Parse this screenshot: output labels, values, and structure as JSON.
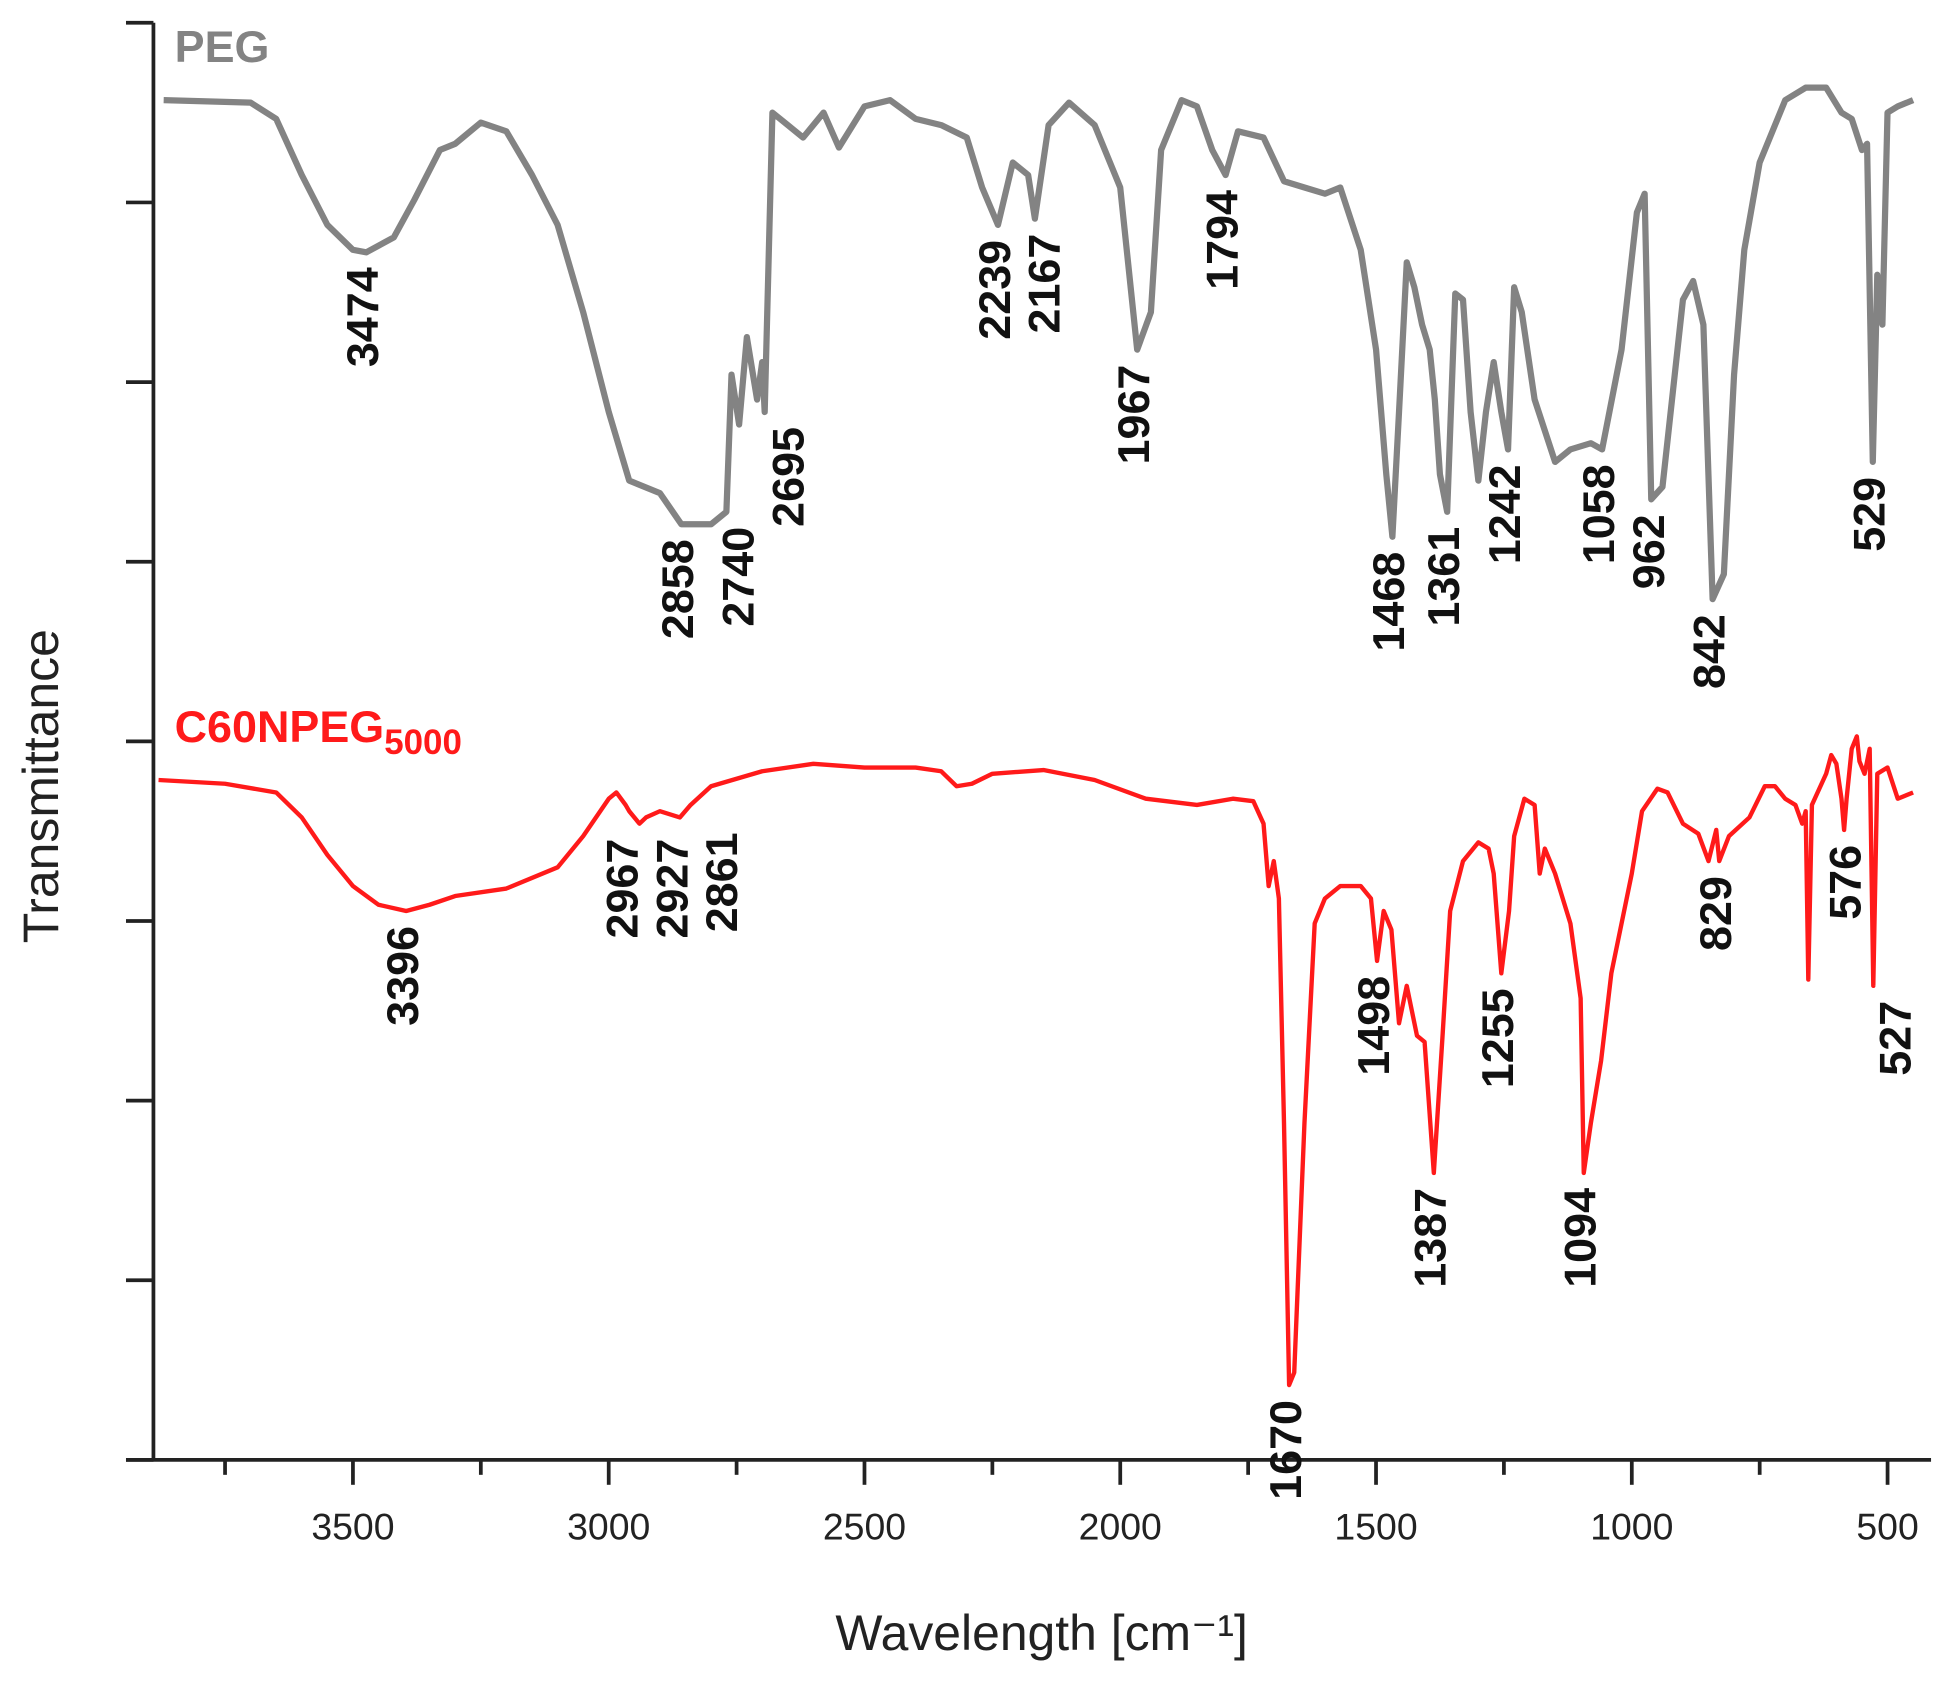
{
  "chart_data": {
    "type": "line",
    "xlabel": "Wavelength [cm⁻¹]",
    "ylabel": "Transmittance",
    "xlim": [
      3890,
      415
    ],
    "xticks": [
      3500,
      3000,
      2500,
      2000,
      1500,
      1000,
      500
    ],
    "xminorticks": [
      3750,
      3250,
      2750,
      2250,
      1750,
      1250,
      750
    ],
    "ylim": [
      0,
      1152
    ],
    "yticks": [
      0,
      144,
      288,
      432,
      576,
      720,
      864,
      1008,
      1152
    ],
    "ytick_labels": false,
    "series": [
      {
        "name": "PEG",
        "color": "#838383",
        "x": [
          3870,
          3700,
          3650,
          3600,
          3550,
          3500,
          3474,
          3420,
          3380,
          3330,
          3300,
          3250,
          3200,
          3150,
          3100,
          3050,
          3000,
          2960,
          2900,
          2858,
          2800,
          2770,
          2760,
          2745,
          2730,
          2710,
          2700,
          2695,
          2680,
          2650,
          2620,
          2580,
          2550,
          2500,
          2450,
          2400,
          2350,
          2300,
          2270,
          2239,
          2210,
          2180,
          2167,
          2140,
          2100,
          2050,
          2000,
          1967,
          1940,
          1920,
          1880,
          1850,
          1820,
          1794,
          1770,
          1720,
          1680,
          1640,
          1600,
          1570,
          1530,
          1500,
          1480,
          1468,
          1455,
          1440,
          1425,
          1410,
          1395,
          1385,
          1375,
          1361,
          1345,
          1330,
          1315,
          1300,
          1285,
          1270,
          1255,
          1242,
          1230,
          1215,
          1190,
          1150,
          1120,
          1080,
          1058,
          1020,
          990,
          975,
          962,
          940,
          900,
          880,
          860,
          842,
          820,
          800,
          780,
          750,
          700,
          660,
          620,
          590,
          570,
          550,
          540,
          529,
          520,
          510,
          500,
          480,
          450
        ],
        "values": [
          1090,
          1088,
          1075,
          1030,
          990,
          970,
          968,
          980,
          1010,
          1050,
          1055,
          1072,
          1065,
          1030,
          990,
          920,
          840,
          785,
          775,
          750,
          750,
          760,
          870,
          830,
          900,
          850,
          880,
          840,
          1080,
          1070,
          1060,
          1080,
          1052,
          1085,
          1090,
          1075,
          1070,
          1060,
          1020,
          990,
          1040,
          1030,
          995,
          1070,
          1088,
          1070,
          1020,
          890,
          920,
          1050,
          1090,
          1085,
          1050,
          1030,
          1065,
          1060,
          1025,
          1020,
          1015,
          1020,
          970,
          890,
          790,
          740,
          840,
          960,
          940,
          910,
          890,
          850,
          790,
          760,
          935,
          930,
          840,
          785,
          840,
          880,
          840,
          810,
          940,
          920,
          850,
          800,
          810,
          815,
          810,
          890,
          1000,
          1015,
          770,
          780,
          930,
          945,
          910,
          690,
          710,
          870,
          970,
          1040,
          1090,
          1100,
          1100,
          1080,
          1075,
          1050,
          1055,
          800,
          950,
          910,
          1080,
          1085,
          1090
        ],
        "peaks": [
          3474,
          2858,
          2740,
          2695,
          2239,
          2167,
          1967,
          1794,
          1468,
          1361,
          1242,
          1058,
          962,
          842,
          529
        ]
      },
      {
        "name": "C60NPEG",
        "name_subscript": "5000",
        "color": "#ff1a1a",
        "x": [
          3880,
          3750,
          3650,
          3600,
          3550,
          3500,
          3450,
          3396,
          3350,
          3300,
          3200,
          3100,
          3050,
          3000,
          2985,
          2967,
          2960,
          2940,
          2927,
          2900,
          2861,
          2840,
          2800,
          2700,
          2600,
          2500,
          2400,
          2350,
          2320,
          2290,
          2250,
          2150,
          2050,
          1950,
          1850,
          1780,
          1740,
          1720,
          1710,
          1700,
          1690,
          1680,
          1670,
          1660,
          1640,
          1620,
          1600,
          1570,
          1530,
          1510,
          1498,
          1485,
          1470,
          1455,
          1440,
          1430,
          1420,
          1405,
          1387,
          1370,
          1355,
          1330,
          1300,
          1280,
          1270,
          1255,
          1240,
          1230,
          1210,
          1190,
          1180,
          1170,
          1150,
          1120,
          1100,
          1094,
          1080,
          1060,
          1040,
          1000,
          980,
          950,
          930,
          900,
          870,
          850,
          835,
          829,
          810,
          770,
          740,
          720,
          700,
          680,
          667,
          660,
          655,
          648,
          620,
          610,
          600,
          590,
          585,
          580,
          570,
          560,
          555,
          545,
          535,
          528,
          520,
          500,
          480,
          450
        ],
        "values": [
          545,
          542,
          535,
          515,
          485,
          460,
          445,
          440,
          445,
          452,
          458,
          475,
          500,
          530,
          535,
          525,
          520,
          510,
          515,
          520,
          515,
          525,
          540,
          552,
          558,
          555,
          555,
          552,
          540,
          542,
          550,
          553,
          545,
          530,
          525,
          530,
          528,
          510,
          460,
          480,
          450,
          270,
          60,
          70,
          270,
          430,
          450,
          460,
          460,
          450,
          400,
          440,
          425,
          350,
          380,
          360,
          340,
          335,
          230,
          340,
          440,
          480,
          495,
          490,
          470,
          390,
          440,
          500,
          530,
          525,
          470,
          490,
          470,
          430,
          370,
          230,
          270,
          320,
          390,
          470,
          520,
          538,
          535,
          510,
          502,
          480,
          505,
          480,
          500,
          515,
          540,
          540,
          530,
          525,
          510,
          520,
          385,
          525,
          550,
          565,
          558,
          530,
          505,
          530,
          570,
          580,
          560,
          550,
          570,
          380,
          550,
          555,
          530,
          535
        ],
        "peaks": [
          3396,
          2967,
          2927,
          2861,
          1670,
          1498,
          1387,
          1255,
          1094,
          829,
          576,
          527
        ]
      }
    ]
  }
}
